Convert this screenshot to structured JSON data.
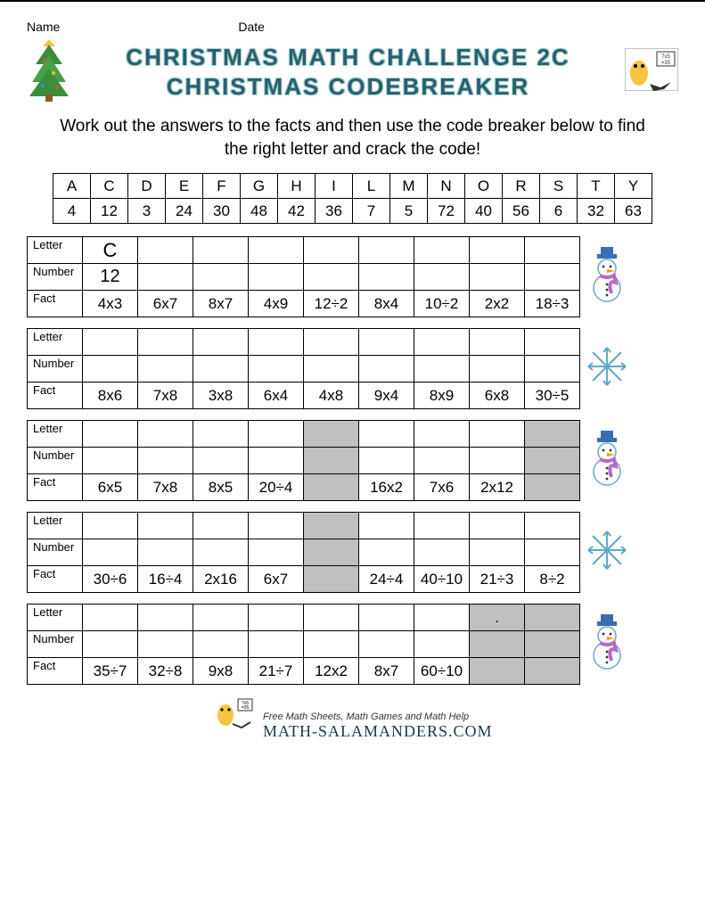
{
  "header": {
    "name_label": "Name",
    "date_label": "Date"
  },
  "title_line1": "CHRISTMAS MATH CHALLENGE 2C",
  "title_line2": "CHRISTMAS CODEBREAKER",
  "instructions": "Work out the answers to the facts and then use the code breaker below to find the right letter and crack the code!",
  "code_table": {
    "letters": [
      "A",
      "C",
      "D",
      "E",
      "F",
      "G",
      "H",
      "I",
      "L",
      "M",
      "N",
      "O",
      "R",
      "S",
      "T",
      "Y"
    ],
    "numbers": [
      "4",
      "12",
      "3",
      "24",
      "30",
      "48",
      "42",
      "36",
      "7",
      "5",
      "72",
      "40",
      "56",
      "6",
      "32",
      "63"
    ]
  },
  "row_labels": {
    "letter": "Letter",
    "number": "Number",
    "fact": "Fact"
  },
  "blocks": [
    {
      "cols": 9,
      "letters": [
        "C",
        "",
        "",
        "",
        "",
        "",
        "",
        "",
        ""
      ],
      "numbers": [
        "12",
        "",
        "",
        "",
        "",
        "",
        "",
        "",
        ""
      ],
      "facts": [
        "4x3",
        "6x7",
        "8x7",
        "4x9",
        "12÷2",
        "8x4",
        "10÷2",
        "2x2",
        "18÷3"
      ],
      "grey": [],
      "icon": "snowman"
    },
    {
      "cols": 9,
      "letters": [
        "",
        "",
        "",
        "",
        "",
        "",
        "",
        "",
        ""
      ],
      "numbers": [
        "",
        "",
        "",
        "",
        "",
        "",
        "",
        "",
        ""
      ],
      "facts": [
        "8x6",
        "7x8",
        "3x8",
        "6x4",
        "4x8",
        "9x4",
        "8x9",
        "6x8",
        "30÷5"
      ],
      "grey": [],
      "icon": "snowflake"
    },
    {
      "cols": 9,
      "letters": [
        "",
        "",
        "",
        "",
        "",
        "",
        "",
        "",
        ""
      ],
      "numbers": [
        "",
        "",
        "",
        "",
        "",
        "",
        "",
        "",
        ""
      ],
      "facts": [
        "6x5",
        "7x8",
        "8x5",
        "20÷4",
        "",
        "16x2",
        "7x6",
        "2x12",
        ""
      ],
      "grey": [
        4,
        8
      ],
      "icon": "snowman"
    },
    {
      "cols": 9,
      "letters": [
        "",
        "",
        "",
        "",
        "",
        "",
        "",
        "",
        ""
      ],
      "numbers": [
        "",
        "",
        "",
        "",
        "",
        "",
        "",
        "",
        ""
      ],
      "facts": [
        "30÷6",
        "16÷4",
        "2x16",
        "6x7",
        "",
        "24÷4",
        "40÷10",
        "21÷3",
        "8÷2"
      ],
      "grey": [
        4
      ],
      "icon": "snowflake"
    },
    {
      "cols": 9,
      "letters": [
        "",
        "",
        "",
        "",
        "",
        "",
        "",
        ".",
        ""
      ],
      "numbers": [
        "",
        "",
        "",
        "",
        "",
        "",
        "",
        "",
        ""
      ],
      "facts": [
        "35÷7",
        "32÷8",
        "9x8",
        "21÷7",
        "12x2",
        "8x7",
        "60÷10",
        "",
        ""
      ],
      "grey": [
        7,
        8
      ],
      "icon": "snowman"
    }
  ],
  "footer": {
    "tagline": "Free Math Sheets, Math Games and Math Help",
    "brand": "MATH-SALAMANDERS.COM"
  },
  "colors": {
    "title_color": "#2a5f6f",
    "title_outline": "#a8d8d0",
    "grey_cell": "#bfbfbf",
    "snowman_hat": "#3a6fb0",
    "snowman_scarf": "#b968c7",
    "snowflake": "#5fa8c8",
    "tree_green": "#3a8f3a",
    "tree_star": "#f5c542"
  }
}
